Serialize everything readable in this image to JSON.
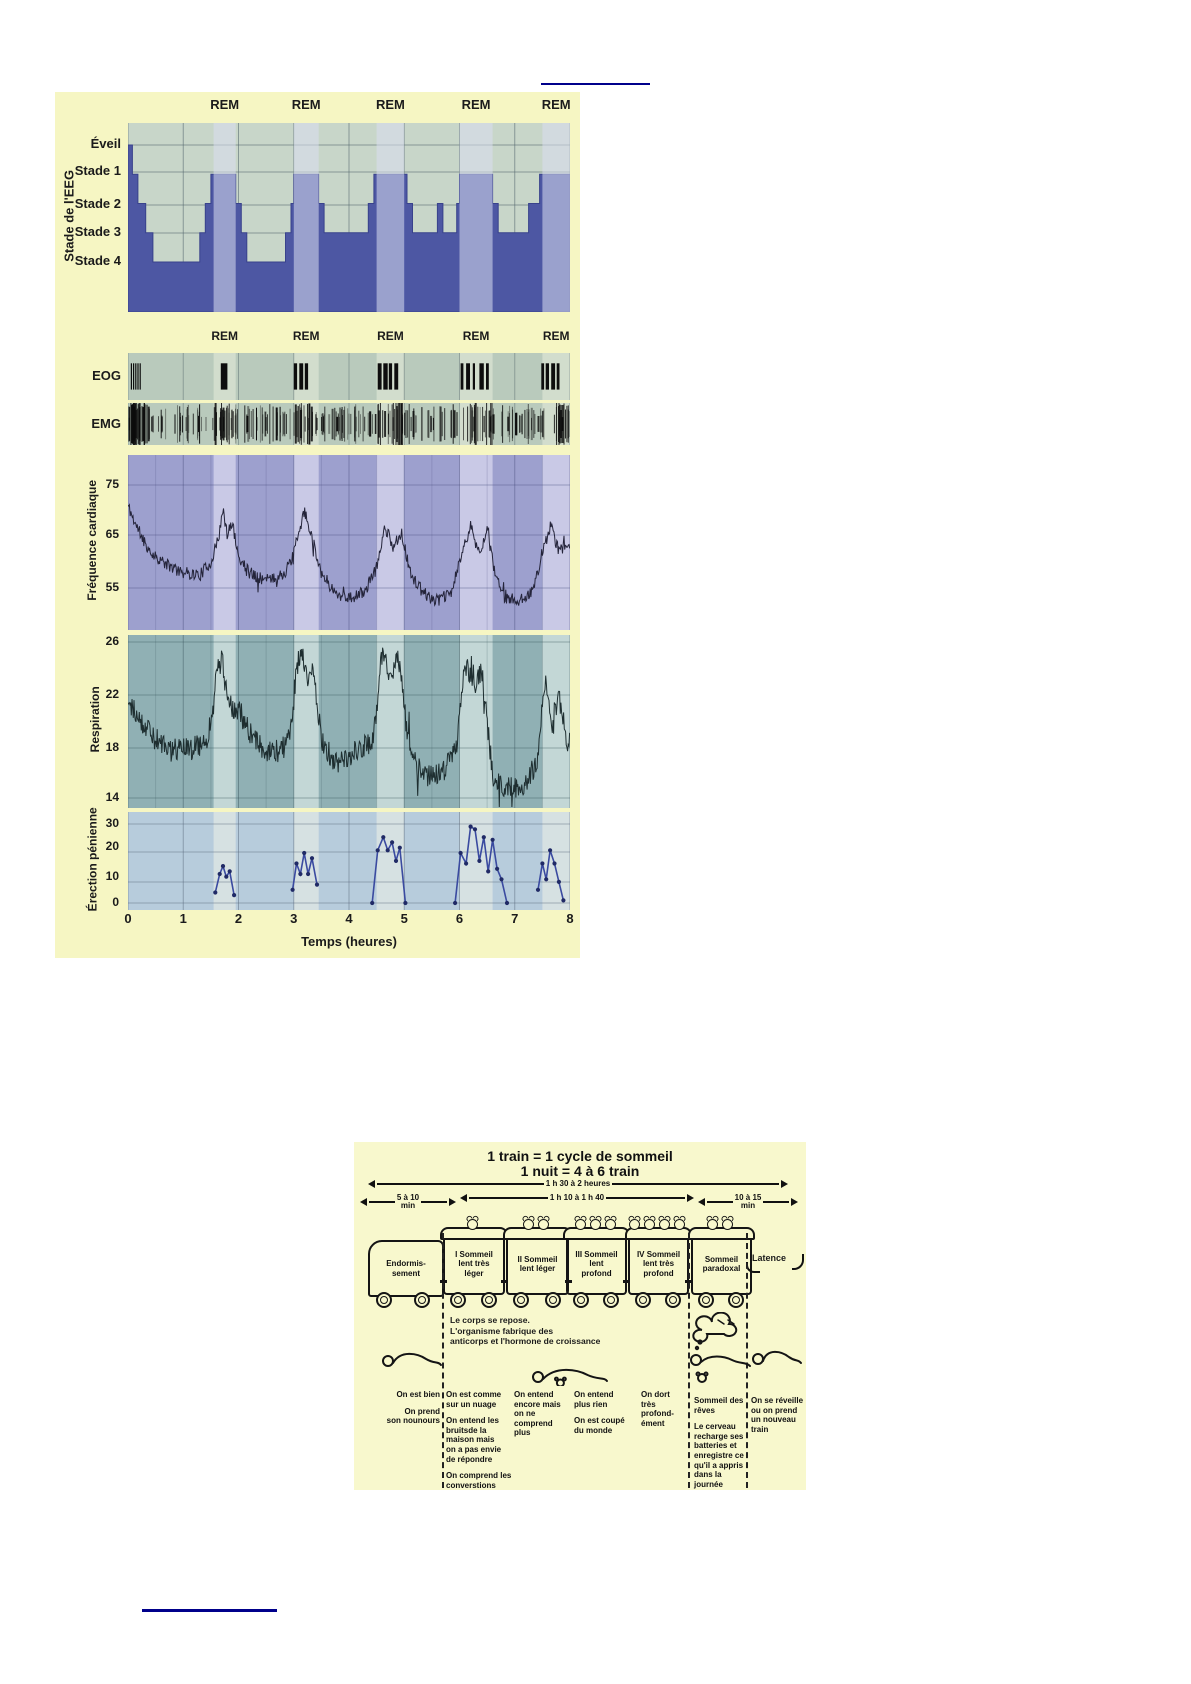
{
  "page": {
    "background": "#ffffff"
  },
  "decorations": {
    "rule_color": "#00008b"
  },
  "figure1": {
    "rem_label": "REM",
    "eeg_axis_label": "Stade de l'EEG",
    "stage_labels": [
      "Éveil",
      "Stade 1",
      "Stade 2",
      "Stade 3",
      "Stade 4"
    ],
    "eog_label": "EOG",
    "emg_label": "EMG",
    "heart_axis_label": "Fréquence cardiaque",
    "heart_ticks": [
      "75",
      "65",
      "55"
    ],
    "resp_axis_label": "Respiration",
    "resp_ticks": [
      "26",
      "22",
      "18",
      "14"
    ],
    "erection_axis_label": "Érection pénienne",
    "erection_ticks": [
      "30",
      "20",
      "10",
      "0"
    ],
    "x_ticks": [
      "0",
      "1",
      "2",
      "3",
      "4",
      "5",
      "6",
      "7",
      "8"
    ],
    "x_axis_label": "Temps (heures)"
  },
  "chart_data": {
    "type": "multi-panel",
    "x": {
      "label": "Temps (heures)",
      "range": [
        0,
        8
      ],
      "ticks": [
        0,
        1,
        2,
        3,
        4,
        5,
        6,
        7,
        8
      ]
    },
    "rem_label": "REM",
    "rem_intervals_hours": [
      [
        1.55,
        1.95
      ],
      [
        3.0,
        3.45
      ],
      [
        4.5,
        5.0
      ],
      [
        6.0,
        6.6
      ],
      [
        7.5,
        8.0
      ]
    ],
    "panels": {
      "eeg": {
        "type": "step-area",
        "ylabel": "Stade de l'EEG",
        "stage_order": [
          "Éveil",
          "Stade 1",
          "Stade 2",
          "Stade 3",
          "Stade 4"
        ],
        "steps": [
          [
            0,
            0
          ],
          [
            0.08,
            1
          ],
          [
            0.18,
            2
          ],
          [
            0.32,
            3
          ],
          [
            0.45,
            4
          ],
          [
            1.3,
            3
          ],
          [
            1.4,
            2
          ],
          [
            1.5,
            1
          ],
          [
            1.95,
            2
          ],
          [
            2.05,
            3
          ],
          [
            2.15,
            4
          ],
          [
            2.85,
            3
          ],
          [
            2.95,
            2
          ],
          [
            3.0,
            1
          ],
          [
            3.45,
            2
          ],
          [
            3.55,
            3
          ],
          [
            4.35,
            2
          ],
          [
            4.45,
            1
          ],
          [
            5.05,
            2
          ],
          [
            5.15,
            3
          ],
          [
            5.6,
            2
          ],
          [
            5.7,
            3
          ],
          [
            5.95,
            2
          ],
          [
            6.0,
            1
          ],
          [
            6.6,
            2
          ],
          [
            6.7,
            3
          ],
          [
            7.25,
            2
          ],
          [
            7.45,
            1
          ]
        ]
      },
      "eog": {
        "type": "event-bars",
        "label": "EOG",
        "bars": [
          {
            "t": 0.05,
            "w": 0.02
          },
          {
            "t": 0.09,
            "w": 0.02
          },
          {
            "t": 0.13,
            "w": 0.02
          },
          {
            "t": 0.17,
            "w": 0.02
          },
          {
            "t": 0.21,
            "w": 0.02
          },
          {
            "t": 1.68,
            "w": 0.12
          },
          {
            "t": 3.0,
            "w": 0.06
          },
          {
            "t": 3.1,
            "w": 0.07
          },
          {
            "t": 3.2,
            "w": 0.06
          },
          {
            "t": 4.52,
            "w": 0.07
          },
          {
            "t": 4.62,
            "w": 0.08
          },
          {
            "t": 4.72,
            "w": 0.06
          },
          {
            "t": 4.82,
            "w": 0.07
          },
          {
            "t": 6.02,
            "w": 0.05
          },
          {
            "t": 6.12,
            "w": 0.07
          },
          {
            "t": 6.24,
            "w": 0.04
          },
          {
            "t": 6.36,
            "w": 0.08
          },
          {
            "t": 6.48,
            "w": 0.05
          },
          {
            "t": 7.48,
            "w": 0.05
          },
          {
            "t": 7.56,
            "w": 0.06
          },
          {
            "t": 7.66,
            "w": 0.07
          },
          {
            "t": 7.76,
            "w": 0.05
          }
        ]
      },
      "emg": {
        "type": "event-bars",
        "label": "EMG",
        "random_seed": 77,
        "bar_count": 230
      },
      "heart_rate": {
        "type": "line",
        "ylabel": "Fréquence cardiaque",
        "yticks": [
          75,
          65,
          55
        ],
        "ylim": [
          47,
          81
        ],
        "noise_amplitude": 2.4,
        "random_seed": 11,
        "control_points": [
          [
            0,
            71
          ],
          [
            0.15,
            67
          ],
          [
            0.4,
            62
          ],
          [
            0.7,
            59.5
          ],
          [
            1.0,
            58
          ],
          [
            1.3,
            57.5
          ],
          [
            1.5,
            60
          ],
          [
            1.62,
            64
          ],
          [
            1.72,
            70
          ],
          [
            1.8,
            65
          ],
          [
            1.88,
            68
          ],
          [
            2.0,
            61
          ],
          [
            2.2,
            58
          ],
          [
            2.5,
            56.5
          ],
          [
            2.8,
            57.5
          ],
          [
            2.95,
            60
          ],
          [
            3.1,
            66
          ],
          [
            3.2,
            70
          ],
          [
            3.35,
            64
          ],
          [
            3.5,
            58
          ],
          [
            3.75,
            54
          ],
          [
            4.05,
            53
          ],
          [
            4.3,
            54.5
          ],
          [
            4.5,
            59
          ],
          [
            4.65,
            67
          ],
          [
            4.8,
            63
          ],
          [
            4.95,
            66
          ],
          [
            5.1,
            58
          ],
          [
            5.35,
            54
          ],
          [
            5.6,
            52.5
          ],
          [
            5.85,
            54
          ],
          [
            6.05,
            62
          ],
          [
            6.2,
            67
          ],
          [
            6.35,
            62
          ],
          [
            6.5,
            66
          ],
          [
            6.65,
            57
          ],
          [
            6.85,
            53
          ],
          [
            7.1,
            52.5
          ],
          [
            7.35,
            55
          ],
          [
            7.5,
            62
          ],
          [
            7.65,
            67
          ],
          [
            7.8,
            62
          ],
          [
            7.95,
            64
          ],
          [
            8,
            63
          ]
        ]
      },
      "respiration": {
        "type": "line",
        "ylabel": "Respiration",
        "yticks": [
          26,
          22,
          18,
          14
        ],
        "ylim": [
          13.5,
          26.5
        ],
        "noise_amplitude": 1.8,
        "random_seed": 29,
        "control_points": [
          [
            0,
            21.8
          ],
          [
            0.2,
            20.3
          ],
          [
            0.5,
            18.6
          ],
          [
            0.8,
            17.8
          ],
          [
            1.1,
            17.9
          ],
          [
            1.35,
            18.2
          ],
          [
            1.5,
            19.5
          ],
          [
            1.6,
            23.5
          ],
          [
            1.7,
            24.8
          ],
          [
            1.8,
            21.5
          ],
          [
            1.92,
            21
          ],
          [
            2.05,
            20.5
          ],
          [
            2.25,
            18.8
          ],
          [
            2.55,
            17.6
          ],
          [
            2.8,
            17.9
          ],
          [
            2.95,
            19.5
          ],
          [
            3.05,
            24
          ],
          [
            3.15,
            25.6
          ],
          [
            3.25,
            23
          ],
          [
            3.35,
            24.5
          ],
          [
            3.5,
            18.5
          ],
          [
            3.75,
            16.8
          ],
          [
            4.0,
            17.2
          ],
          [
            4.25,
            17.8
          ],
          [
            4.45,
            19
          ],
          [
            4.6,
            25.2
          ],
          [
            4.75,
            23.5
          ],
          [
            4.9,
            24.8
          ],
          [
            5.05,
            19
          ],
          [
            5.25,
            16.5
          ],
          [
            5.5,
            15.8
          ],
          [
            5.75,
            16.5
          ],
          [
            5.95,
            18
          ],
          [
            6.1,
            24.6
          ],
          [
            6.25,
            22.5
          ],
          [
            6.4,
            23.8
          ],
          [
            6.6,
            16
          ],
          [
            6.8,
            14.8
          ],
          [
            7.0,
            15
          ],
          [
            7.2,
            15.2
          ],
          [
            7.4,
            17
          ],
          [
            7.55,
            23.2
          ],
          [
            7.68,
            20
          ],
          [
            7.8,
            22
          ],
          [
            7.95,
            18.5
          ],
          [
            8,
            18.8
          ]
        ]
      },
      "erection": {
        "type": "line-markers",
        "ylabel": "Érection pénienne",
        "yticks": [
          30,
          20,
          10,
          0
        ],
        "ylim": [
          0,
          34.5
        ],
        "episodes": [
          [
            [
              1.58,
              4
            ],
            [
              1.66,
              11
            ],
            [
              1.72,
              14
            ],
            [
              1.78,
              10
            ],
            [
              1.84,
              12
            ],
            [
              1.92,
              3
            ]
          ],
          [
            [
              2.98,
              5
            ],
            [
              3.05,
              15
            ],
            [
              3.12,
              11
            ],
            [
              3.19,
              19
            ],
            [
              3.26,
              11
            ],
            [
              3.33,
              17
            ],
            [
              3.42,
              7
            ]
          ],
          [
            [
              4.42,
              0
            ],
            [
              4.52,
              20
            ],
            [
              4.62,
              25
            ],
            [
              4.7,
              20
            ],
            [
              4.78,
              23
            ],
            [
              4.85,
              16
            ],
            [
              4.92,
              21
            ],
            [
              5.02,
              0
            ]
          ],
          [
            [
              5.92,
              0
            ],
            [
              6.02,
              19
            ],
            [
              6.12,
              15
            ],
            [
              6.2,
              29
            ],
            [
              6.28,
              28
            ],
            [
              6.36,
              16
            ],
            [
              6.44,
              25
            ],
            [
              6.52,
              12
            ],
            [
              6.6,
              24
            ],
            [
              6.68,
              13
            ],
            [
              6.76,
              9
            ],
            [
              6.86,
              0
            ]
          ],
          [
            [
              7.42,
              5
            ],
            [
              7.5,
              15
            ],
            [
              7.57,
              9
            ],
            [
              7.64,
              20
            ],
            [
              7.72,
              15
            ],
            [
              7.8,
              8
            ],
            [
              7.88,
              1
            ]
          ]
        ]
      }
    }
  },
  "figure2": {
    "title_line1": "1 train = 1 cycle de sommeil",
    "title_line2": "1 nuit = 4 à 6 train",
    "arrows": {
      "top": "1 h 30 à 2 heures",
      "left": "5 à 10\nmin",
      "middle": "1 h 10 à 1 h 40",
      "right": "10 à 15\nmin"
    },
    "locomotive_label": "Endormis-\nsement",
    "cars": [
      {
        "label": "I Sommeil\nlent très\nléger",
        "clocks": 1
      },
      {
        "label": "II Sommeil\nlent léger",
        "clocks": 2
      },
      {
        "label": "III Sommeil\nlent\nprofond",
        "clocks": 3
      },
      {
        "label": "IV Sommeil\nlent très\nprofond",
        "clocks": 4
      },
      {
        "label": "Sommeil\nparadoxal",
        "clocks": 2
      }
    ],
    "latence_label": "Latence",
    "body_note": "Le corps se repose.\nL'organisme fabrique des\nanticorps et l'hormone de croissance",
    "columns": [
      {
        "texts": [
          "On est bien",
          "On prend\nson nounours"
        ]
      },
      {
        "texts": [
          "On est comme\nsur un nuage",
          "On entend les\nbruitsde la\nmaison mais\non a pas envie\nde répondre",
          "On comprend les\nconverstions"
        ]
      },
      {
        "texts": [
          "On entend\nencore mais\non ne\ncomprend\nplus"
        ]
      },
      {
        "texts": [
          "On entend\nplus rien",
          "On est coupé\ndu monde"
        ]
      },
      {
        "texts": [
          "On dort\ntrès\nprofond-\nément"
        ]
      },
      {
        "texts": [
          "Sommeil des\nrêves",
          "Le cerveau\nrecharge ses\nbatteries et\nenregistre ce\nqu'il a appris\ndans la\njournée"
        ]
      },
      {
        "texts": [
          "On se réveille\nou on prend\nun nouveau\ntrain"
        ]
      }
    ]
  }
}
